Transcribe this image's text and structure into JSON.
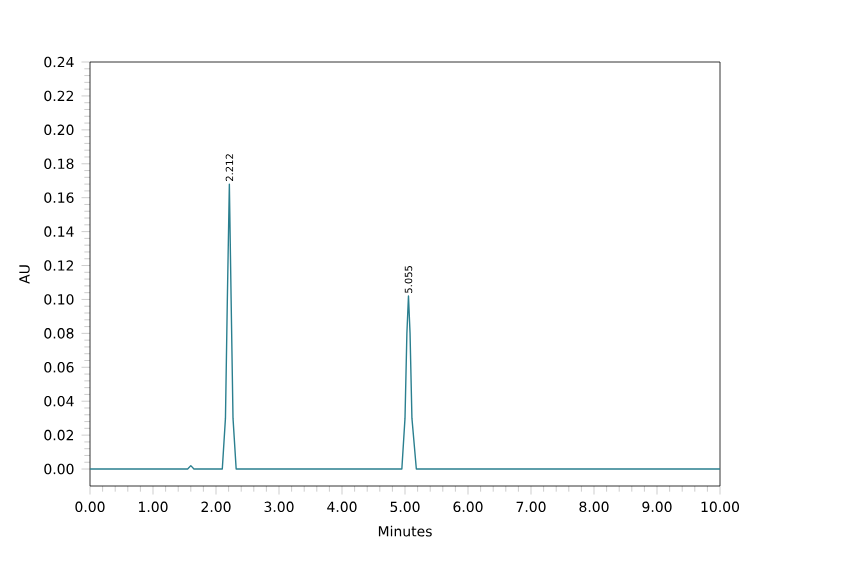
{
  "chart_data": {
    "type": "line",
    "xlabel": "Minutes",
    "ylabel": "AU",
    "color": "#2a7f8f",
    "x": [
      0,
      1.55,
      1.6,
      1.65,
      2.1,
      2.15,
      2.18,
      2.212,
      2.24,
      2.27,
      2.32,
      4.95,
      5.0,
      5.03,
      5.055,
      5.08,
      5.11,
      5.18,
      10
    ],
    "values": [
      0,
      0,
      0.002,
      0,
      0,
      0.03,
      0.1,
      0.168,
      0.1,
      0.03,
      0,
      0,
      0.03,
      0.08,
      0.102,
      0.08,
      0.03,
      0,
      0
    ],
    "xlim": [
      0,
      10
    ],
    "ylim": [
      -0.01,
      0.24
    ],
    "xticks": [
      {
        "value": 0,
        "label": "0.00"
      },
      {
        "value": 1,
        "label": "1.00"
      },
      {
        "value": 2,
        "label": "2.00"
      },
      {
        "value": 3,
        "label": "3.00"
      },
      {
        "value": 4,
        "label": "4.00"
      },
      {
        "value": 5,
        "label": "5.00"
      },
      {
        "value": 6,
        "label": "6.00"
      },
      {
        "value": 7,
        "label": "7.00"
      },
      {
        "value": 8,
        "label": "8.00"
      },
      {
        "value": 9,
        "label": "9.00"
      },
      {
        "value": 10,
        "label": "10.00"
      }
    ],
    "yticks": [
      {
        "value": 0,
        "label": "0.00"
      },
      {
        "value": 0.02,
        "label": "0.02"
      },
      {
        "value": 0.04,
        "label": "0.04"
      },
      {
        "value": 0.06,
        "label": "0.06"
      },
      {
        "value": 0.08,
        "label": "0.08"
      },
      {
        "value": 0.1,
        "label": "0.10"
      },
      {
        "value": 0.12,
        "label": "0.12"
      },
      {
        "value": 0.14,
        "label": "0.14"
      },
      {
        "value": 0.16,
        "label": "0.16"
      },
      {
        "value": 0.18,
        "label": "0.18"
      },
      {
        "value": 0.2,
        "label": "0.20"
      },
      {
        "value": 0.22,
        "label": "0.22"
      },
      {
        "value": 0.24,
        "label": "0.24"
      }
    ],
    "annotations": [
      {
        "text": "2.212",
        "x": 2.212,
        "y": 0.168
      },
      {
        "text": "5.055",
        "x": 5.055,
        "y": 0.102
      }
    ],
    "marker": "none",
    "line_style": "solid"
  }
}
